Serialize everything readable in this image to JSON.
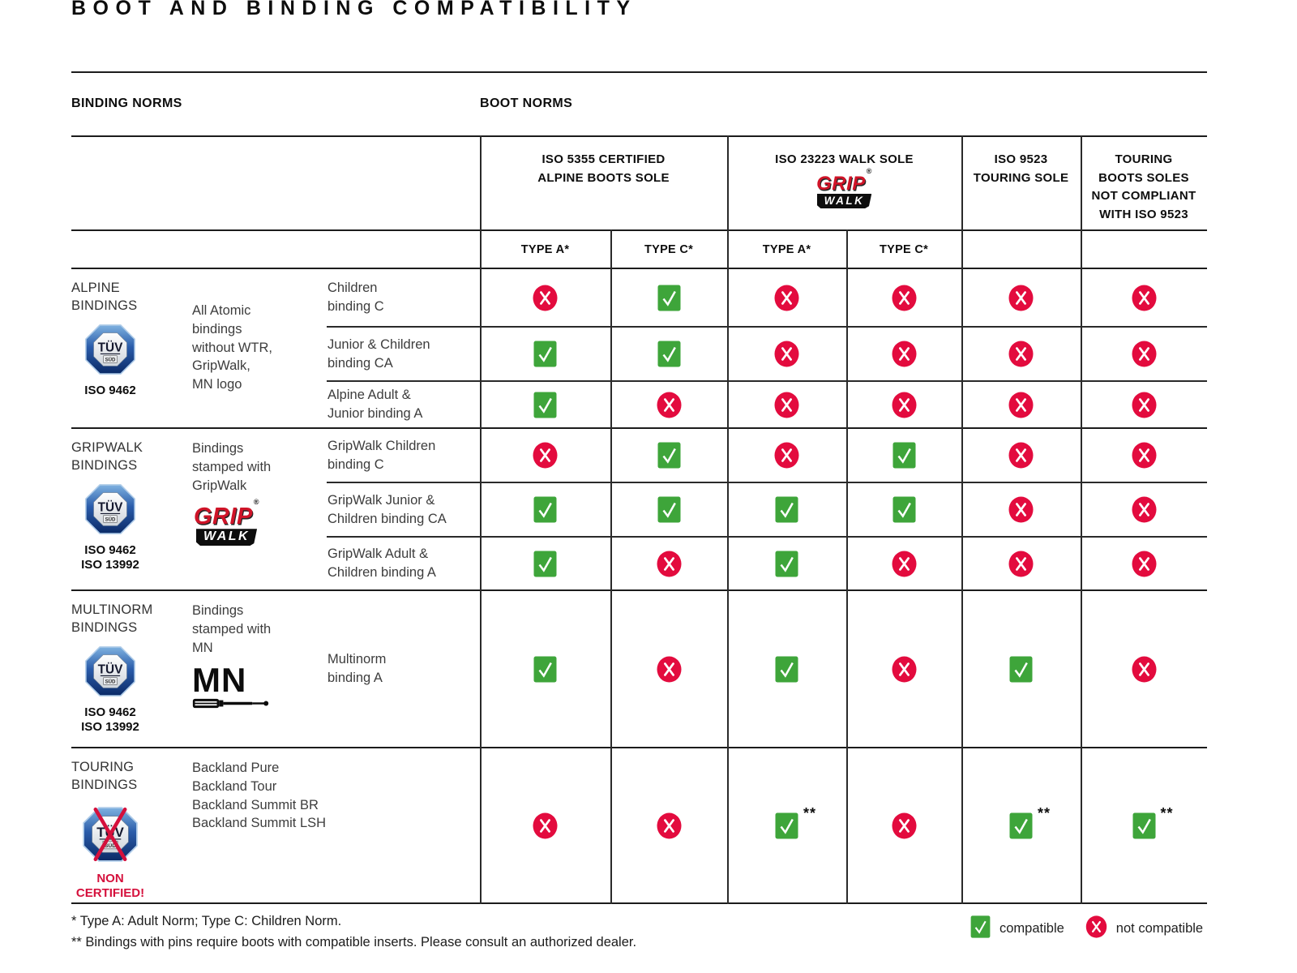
{
  "title": "BOOT AND BINDING COMPATIBILITY",
  "section_labels": {
    "binding_norms": "BINDING NORMS",
    "boot_norms": "BOOT NORMS"
  },
  "boot_norm_columns": {
    "iso5355": {
      "title": "ISO 5355 CERTIFIED\nALPINE BOOTS SOLE",
      "subcols": [
        "TYPE A*",
        "TYPE C*"
      ]
    },
    "iso23223": {
      "title": "ISO 23223 WALK SOLE",
      "logo": "gripwalk-logo",
      "subcols": [
        "TYPE A*",
        "TYPE C*"
      ]
    },
    "iso9523": {
      "title": "ISO 9523\nTOURING SOLE"
    },
    "touring_non_compliant": {
      "title": "TOURING\nBOOTS SOLES\nNOT COMPLIANT\nWITH ISO 9523"
    }
  },
  "tuv_logo_text": {
    "tuv": "TÜV",
    "sud": "SÜD"
  },
  "gripwalk_logo_text": {
    "grip": "GRIP",
    "walk": "WALK",
    "reg": "®"
  },
  "mn_logo_text": "MN",
  "groups": [
    {
      "label": "ALPINE\nBINDINGS",
      "cert": "ISO 9462",
      "certified": true,
      "description": "All Atomic\nbindings\nwithout WTR,\nGripWalk,\nMN logo",
      "rows": [
        {
          "name": "Children\nbinding C",
          "marks": [
            "no",
            "yes",
            "no",
            "no",
            "no",
            "no"
          ]
        },
        {
          "name": "Junior & Children\nbinding CA",
          "marks": [
            "yes",
            "yes",
            "no",
            "no",
            "no",
            "no"
          ]
        },
        {
          "name": "Alpine Adult &\nJunior binding A",
          "marks": [
            "yes",
            "no",
            "no",
            "no",
            "no",
            "no"
          ]
        }
      ]
    },
    {
      "label": "GRIPWALK\nBINDINGS",
      "cert": "ISO 9462\nISO 13992",
      "certified": true,
      "description": "Bindings\nstamped with\nGripWalk",
      "rows": [
        {
          "name": "GripWalk Children\nbinding C",
          "marks": [
            "no",
            "yes",
            "no",
            "yes",
            "no",
            "no"
          ]
        },
        {
          "name": "GripWalk Junior &\nChildren binding CA",
          "marks": [
            "yes",
            "yes",
            "yes",
            "yes",
            "no",
            "no"
          ]
        },
        {
          "name": "GripWalk Adult &\nChildren binding A",
          "marks": [
            "yes",
            "no",
            "yes",
            "no",
            "no",
            "no"
          ]
        }
      ]
    },
    {
      "label": "MULTINORM\nBINDINGS",
      "cert": "ISO 9462\nISO 13992",
      "certified": true,
      "description": "Bindings\nstamped with\nMN",
      "rows": [
        {
          "name": "Multinorm\nbinding A",
          "marks": [
            "yes",
            "no",
            "yes",
            "no",
            "yes",
            "no"
          ]
        }
      ]
    },
    {
      "label": "TOURING\nBINDINGS",
      "cert": "NON\nCERTIFIED!",
      "certified": false,
      "description": "Backland Pure\nBackland Tour\nBackland Summit BR\nBackland Summit LSH",
      "rows": [
        {
          "name": "",
          "marks": [
            "no",
            "no",
            "yes**",
            "no",
            "yes**",
            "yes**"
          ]
        }
      ]
    }
  ],
  "footnotes": [
    "* Type A: Adult Norm; Type C: Children Norm.",
    "** Bindings with pins require boots with compatible inserts. Please consult an authorized dealer."
  ],
  "legend": {
    "compatible": "compatible",
    "not_compatible": "not compatible"
  },
  "colors": {
    "compatible_green": "#3ea53a",
    "not_compatible_red": "#e30b3e",
    "tuv_blue": "#2a5caa",
    "grip_red": "#cf1428",
    "non_certified_red": "#d5103c"
  }
}
